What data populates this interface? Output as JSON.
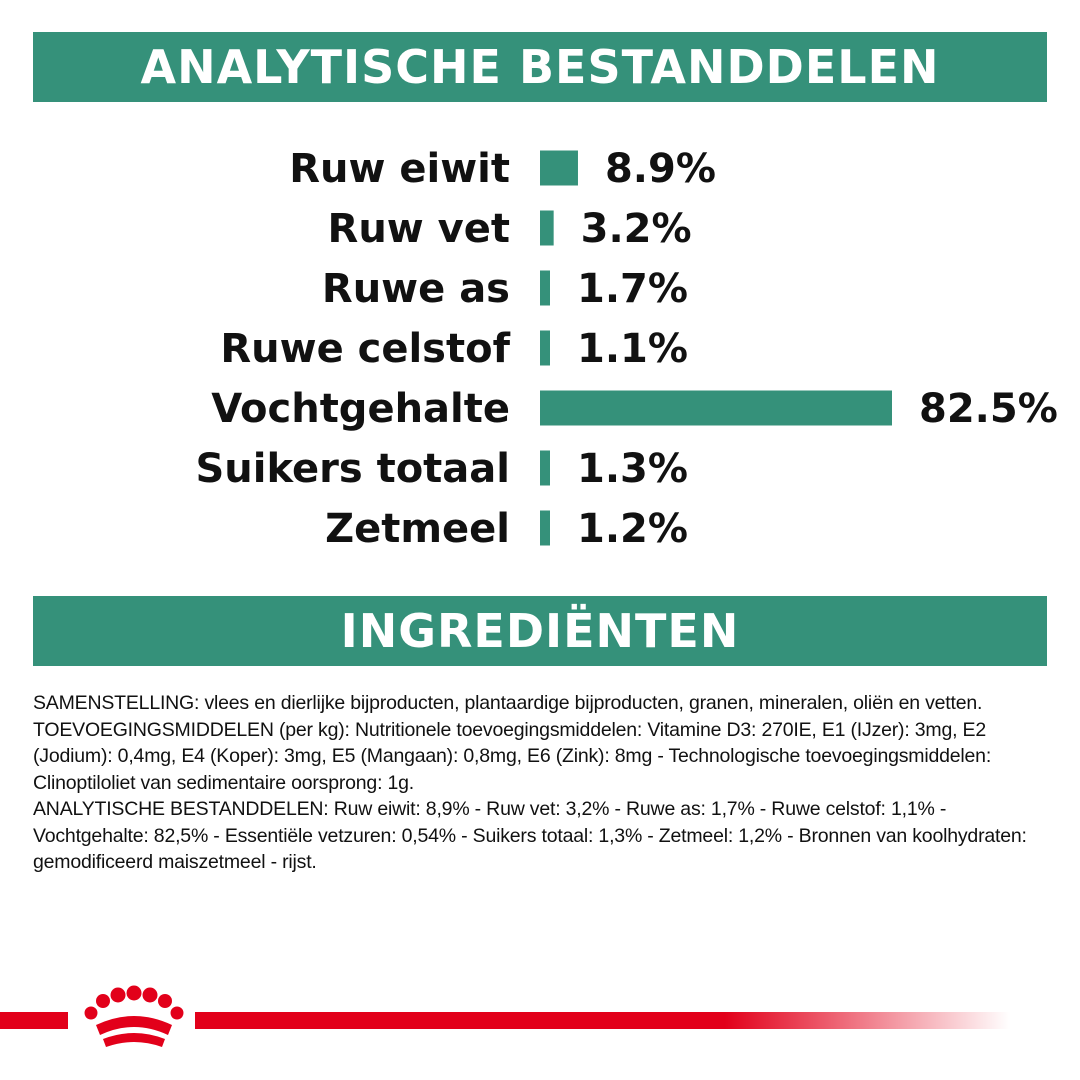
{
  "colors": {
    "accent": "#35917a",
    "brand_red": "#e2001a",
    "text": "#111111"
  },
  "analysis_banner": {
    "title": "ANALYTISCHE BESTANDDELEN"
  },
  "ingredients_banner": {
    "title": "INGREDIËNTEN"
  },
  "chart_data": {
    "type": "bar",
    "orientation": "horizontal",
    "title": "ANALYTISCHE BESTANDDELEN",
    "categories": [
      "Ruw eiwit",
      "Ruw vet",
      "Ruwe as",
      "Ruwe celstof",
      "Vochtgehalte",
      "Suikers totaal",
      "Zetmeel"
    ],
    "values": [
      8.9,
      3.2,
      1.7,
      1.1,
      82.5,
      1.3,
      1.2
    ],
    "value_labels": [
      "8.9%",
      "3.2%",
      "1.7%",
      "1.1%",
      "82.5%",
      "1.3%",
      "1.2%"
    ],
    "unit": "%",
    "xlim": [
      0,
      82.5
    ],
    "grid": false,
    "legend": "none"
  },
  "ingredients": {
    "paragraphs": [
      "SAMENSTELLING: vlees en dierlijke bijproducten, plantaardige bijproducten, granen, mineralen, oliën en vetten.",
      "TOEVOEGINGSMIDDELEN (per kg): Nutritionele toevoegingsmiddelen: Vitamine D3: 270IE, E1 (IJzer): 3mg, E2 (Jodium): 0,4mg, E4 (Koper): 3mg, E5 (Mangaan): 0,8mg, E6 (Zink): 8mg - Technologische toevoegingsmiddelen: Clinoptiloliet van sedimentaire oorsprong: 1g.",
      "ANALYTISCHE BESTANDDELEN: Ruw eiwit: 8,9% - Ruw vet: 3,2% - Ruwe as: 1,7% - Ruwe celstof: 1,1% - Vochtgehalte: 82,5% - Essentiële vetzuren: 0,54% - Suikers totaal: 1,3% - Zetmeel: 1,2% - Bronnen van koolhydraten: gemodificeerd maiszetmeel - rijst."
    ]
  },
  "footer": {
    "logo_icon": "royal-canin-crown-icon"
  }
}
